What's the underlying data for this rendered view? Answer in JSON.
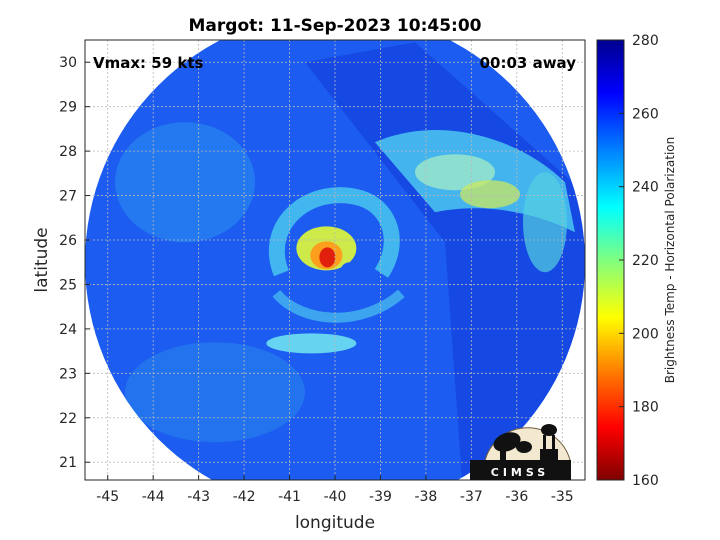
{
  "chart_data": {
    "type": "heatmap",
    "title": "Margot: 11-Sep-2023 10:45:00",
    "xlabel": "longitude",
    "ylabel": "latitude",
    "xlim": [
      -45.5,
      -34.5
    ],
    "ylim": [
      20.6,
      30.5
    ],
    "xticks": [
      -45,
      -44,
      -43,
      -42,
      -41,
      -40,
      -39,
      -38,
      -37,
      -36,
      -35
    ],
    "yticks": [
      21,
      22,
      23,
      24,
      25,
      26,
      27,
      28,
      29,
      30
    ],
    "annotations": {
      "left": "Vmax: 59 kts",
      "right": "00:03 away"
    },
    "grid": true,
    "colorbar": {
      "label": "Brightness Temp - Horizontal Polarization",
      "range": [
        160,
        280
      ],
      "ticks": [
        160,
        180,
        200,
        220,
        240,
        260,
        280
      ],
      "colormap": [
        "#7f0000",
        "#ff0000",
        "#ff8000",
        "#ffff00",
        "#80ff80",
        "#00ffff",
        "#0080ff",
        "#0000ff",
        "#00008f"
      ]
    },
    "storm": {
      "center_lon": -40.3,
      "center_lat": 25.7,
      "coldest_K": 170,
      "background_K": 260,
      "image_center_lon": -40.0,
      "image_center_lat": 25.5,
      "image_radius_deg": 5.5
    }
  },
  "logo": {
    "text": "CIMSS"
  }
}
